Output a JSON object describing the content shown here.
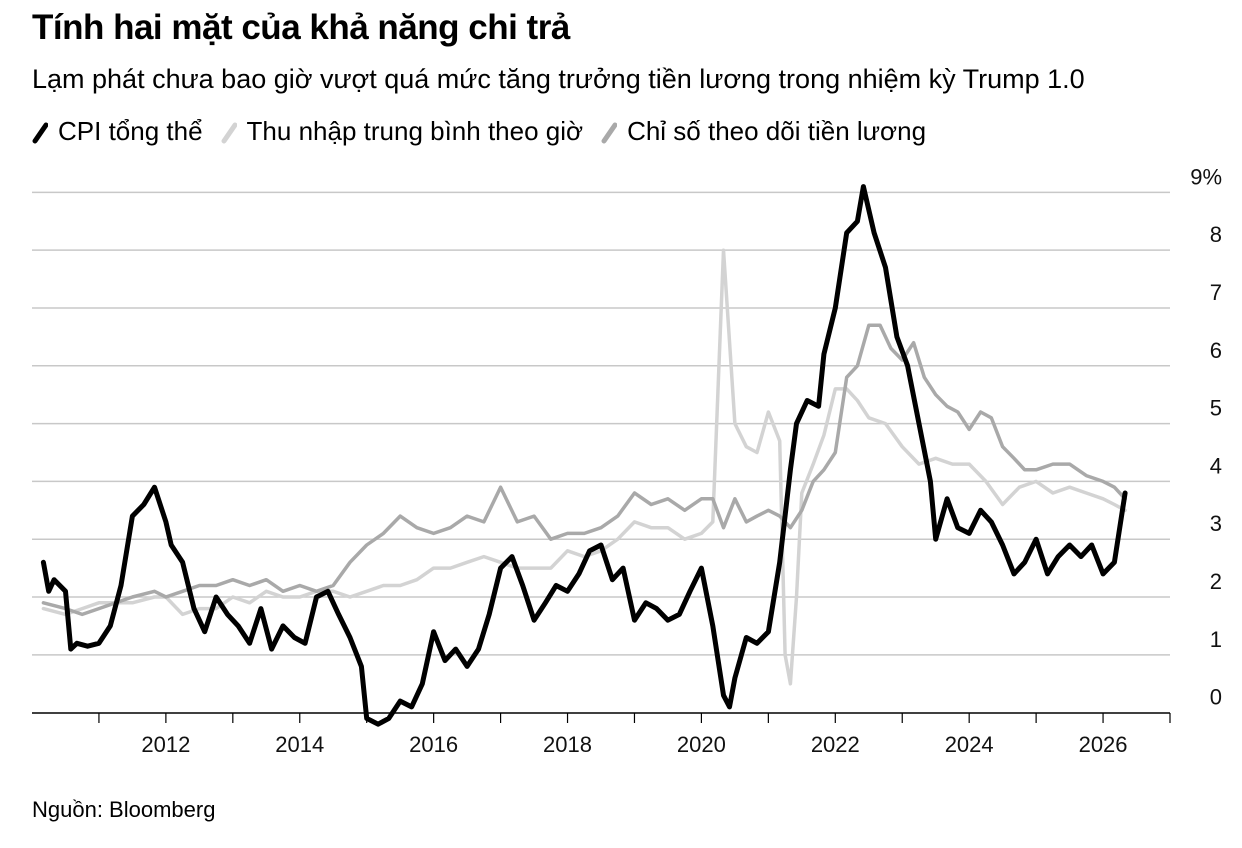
{
  "title": "Tính hai mặt của khả năng chi trả",
  "subtitle": "Lạm phát chưa bao giờ vượt quá mức tăng trưởng tiền lương trong nhiệm kỳ Trump 1.0",
  "source": "Nguồn: Bloomberg",
  "colors": {
    "cpi": "#000000",
    "ahe": "#d3d3d3",
    "wage": "#a9a9a9",
    "grid": "#c8c8c8"
  },
  "chart_data": {
    "type": "line",
    "xlim": [
      2010.0,
      2027.0
    ],
    "ylim": [
      -0.3,
      9.3
    ],
    "y_ticks": [
      0,
      1,
      2,
      3,
      4,
      5,
      6,
      7,
      8,
      9
    ],
    "y_tick_labels": [
      "0",
      "1",
      "2",
      "3",
      "4",
      "5",
      "6",
      "7",
      "8",
      "9%"
    ],
    "x_ticks": [
      2012,
      2014,
      2016,
      2018,
      2020,
      2022,
      2024,
      2026
    ],
    "x_tick_labels": [
      "2012",
      "2014",
      "2016",
      "2018",
      "2020",
      "2022",
      "2024",
      "2026"
    ],
    "grid": true,
    "legend_position": "top-left",
    "series": [
      {
        "name": "CPI tổng thể",
        "color": "#000000",
        "points": [
          [
            2010.17,
            2.6
          ],
          [
            2010.25,
            2.1
          ],
          [
            2010.33,
            2.3
          ],
          [
            2010.5,
            2.1
          ],
          [
            2010.58,
            1.1
          ],
          [
            2010.67,
            1.2
          ],
          [
            2010.83,
            1.15
          ],
          [
            2011.0,
            1.2
          ],
          [
            2011.17,
            1.5
          ],
          [
            2011.33,
            2.2
          ],
          [
            2011.5,
            3.4
          ],
          [
            2011.67,
            3.6
          ],
          [
            2011.83,
            3.9
          ],
          [
            2012.0,
            3.3
          ],
          [
            2012.08,
            2.9
          ],
          [
            2012.25,
            2.6
          ],
          [
            2012.42,
            1.8
          ],
          [
            2012.58,
            1.4
          ],
          [
            2012.75,
            2.0
          ],
          [
            2012.92,
            1.7
          ],
          [
            2013.08,
            1.5
          ],
          [
            2013.25,
            1.2
          ],
          [
            2013.42,
            1.8
          ],
          [
            2013.58,
            1.1
          ],
          [
            2013.75,
            1.5
          ],
          [
            2013.92,
            1.3
          ],
          [
            2014.08,
            1.2
          ],
          [
            2014.25,
            2.0
          ],
          [
            2014.42,
            2.1
          ],
          [
            2014.58,
            1.7
          ],
          [
            2014.75,
            1.3
          ],
          [
            2014.92,
            0.8
          ],
          [
            2015.0,
            -0.1
          ],
          [
            2015.17,
            -0.2
          ],
          [
            2015.33,
            -0.1
          ],
          [
            2015.5,
            0.2
          ],
          [
            2015.67,
            0.1
          ],
          [
            2015.83,
            0.5
          ],
          [
            2016.0,
            1.4
          ],
          [
            2016.17,
            0.9
          ],
          [
            2016.33,
            1.1
          ],
          [
            2016.5,
            0.8
          ],
          [
            2016.67,
            1.1
          ],
          [
            2016.83,
            1.7
          ],
          [
            2017.0,
            2.5
          ],
          [
            2017.17,
            2.7
          ],
          [
            2017.33,
            2.2
          ],
          [
            2017.5,
            1.6
          ],
          [
            2017.67,
            1.9
          ],
          [
            2017.83,
            2.2
          ],
          [
            2018.0,
            2.1
          ],
          [
            2018.17,
            2.4
          ],
          [
            2018.33,
            2.8
          ],
          [
            2018.5,
            2.9
          ],
          [
            2018.67,
            2.3
          ],
          [
            2018.83,
            2.5
          ],
          [
            2019.0,
            1.6
          ],
          [
            2019.17,
            1.9
          ],
          [
            2019.33,
            1.8
          ],
          [
            2019.5,
            1.6
          ],
          [
            2019.67,
            1.7
          ],
          [
            2019.83,
            2.1
          ],
          [
            2020.0,
            2.5
          ],
          [
            2020.17,
            1.5
          ],
          [
            2020.33,
            0.3
          ],
          [
            2020.42,
            0.1
          ],
          [
            2020.5,
            0.6
          ],
          [
            2020.67,
            1.3
          ],
          [
            2020.83,
            1.2
          ],
          [
            2021.0,
            1.4
          ],
          [
            2021.17,
            2.6
          ],
          [
            2021.33,
            4.2
          ],
          [
            2021.42,
            5.0
          ],
          [
            2021.58,
            5.4
          ],
          [
            2021.75,
            5.3
          ],
          [
            2021.83,
            6.2
          ],
          [
            2022.0,
            7.0
          ],
          [
            2022.17,
            8.3
          ],
          [
            2022.33,
            8.5
          ],
          [
            2022.42,
            9.1
          ],
          [
            2022.58,
            8.3
          ],
          [
            2022.75,
            7.7
          ],
          [
            2022.92,
            6.5
          ],
          [
            2023.08,
            6.0
          ],
          [
            2023.25,
            5.0
          ],
          [
            2023.42,
            4.0
          ],
          [
            2023.5,
            3.0
          ],
          [
            2023.67,
            3.7
          ],
          [
            2023.83,
            3.2
          ],
          [
            2024.0,
            3.1
          ],
          [
            2024.17,
            3.5
          ],
          [
            2024.33,
            3.3
          ],
          [
            2024.5,
            2.9
          ],
          [
            2024.67,
            2.4
          ],
          [
            2024.83,
            2.6
          ],
          [
            2025.0,
            3.0
          ],
          [
            2025.17,
            2.4
          ],
          [
            2025.33,
            2.7
          ],
          [
            2025.5,
            2.9
          ],
          [
            2025.67,
            2.7
          ],
          [
            2025.83,
            2.9
          ],
          [
            2026.0,
            2.4
          ],
          [
            2026.17,
            2.6
          ],
          [
            2026.33,
            3.8
          ]
        ]
      },
      {
        "name": "Thu nhập trung bình theo giờ",
        "color": "#d3d3d3",
        "points": [
          [
            2010.17,
            1.8
          ],
          [
            2010.5,
            1.7
          ],
          [
            2010.75,
            1.8
          ],
          [
            2011.0,
            1.9
          ],
          [
            2011.5,
            1.9
          ],
          [
            2011.83,
            2.0
          ],
          [
            2012.0,
            2.0
          ],
          [
            2012.25,
            1.7
          ],
          [
            2012.5,
            1.8
          ],
          [
            2012.75,
            1.8
          ],
          [
            2013.0,
            2.0
          ],
          [
            2013.25,
            1.9
          ],
          [
            2013.5,
            2.1
          ],
          [
            2013.75,
            2.0
          ],
          [
            2014.0,
            2.0
          ],
          [
            2014.25,
            2.1
          ],
          [
            2014.5,
            2.1
          ],
          [
            2014.75,
            2.0
          ],
          [
            2015.0,
            2.1
          ],
          [
            2015.25,
            2.2
          ],
          [
            2015.5,
            2.2
          ],
          [
            2015.75,
            2.3
          ],
          [
            2016.0,
            2.5
          ],
          [
            2016.25,
            2.5
          ],
          [
            2016.5,
            2.6
          ],
          [
            2016.75,
            2.7
          ],
          [
            2017.0,
            2.6
          ],
          [
            2017.25,
            2.5
          ],
          [
            2017.5,
            2.5
          ],
          [
            2017.75,
            2.5
          ],
          [
            2018.0,
            2.8
          ],
          [
            2018.25,
            2.7
          ],
          [
            2018.5,
            2.8
          ],
          [
            2018.75,
            3.0
          ],
          [
            2019.0,
            3.3
          ],
          [
            2019.25,
            3.2
          ],
          [
            2019.5,
            3.2
          ],
          [
            2019.75,
            3.0
          ],
          [
            2020.0,
            3.1
          ],
          [
            2020.17,
            3.3
          ],
          [
            2020.33,
            8.0
          ],
          [
            2020.5,
            5.0
          ],
          [
            2020.67,
            4.6
          ],
          [
            2020.83,
            4.5
          ],
          [
            2021.0,
            5.2
          ],
          [
            2021.17,
            4.7
          ],
          [
            2021.25,
            1.0
          ],
          [
            2021.33,
            0.5
          ],
          [
            2021.42,
            2.0
          ],
          [
            2021.5,
            3.8
          ],
          [
            2021.67,
            4.3
          ],
          [
            2021.83,
            4.8
          ],
          [
            2022.0,
            5.6
          ],
          [
            2022.17,
            5.6
          ],
          [
            2022.33,
            5.4
          ],
          [
            2022.5,
            5.1
          ],
          [
            2022.75,
            5.0
          ],
          [
            2023.0,
            4.6
          ],
          [
            2023.25,
            4.3
          ],
          [
            2023.5,
            4.4
          ],
          [
            2023.75,
            4.3
          ],
          [
            2024.0,
            4.3
          ],
          [
            2024.25,
            4.0
          ],
          [
            2024.5,
            3.6
          ],
          [
            2024.75,
            3.9
          ],
          [
            2025.0,
            4.0
          ],
          [
            2025.25,
            3.8
          ],
          [
            2025.5,
            3.9
          ],
          [
            2025.75,
            3.8
          ],
          [
            2026.0,
            3.7
          ],
          [
            2026.17,
            3.6
          ],
          [
            2026.33,
            3.5
          ]
        ]
      },
      {
        "name": "Chỉ số theo dõi tiền lương",
        "color": "#a9a9a9",
        "points": [
          [
            2010.17,
            1.9
          ],
          [
            2010.5,
            1.8
          ],
          [
            2010.75,
            1.7
          ],
          [
            2011.0,
            1.8
          ],
          [
            2011.5,
            2.0
          ],
          [
            2011.83,
            2.1
          ],
          [
            2012.0,
            2.0
          ],
          [
            2012.25,
            2.1
          ],
          [
            2012.5,
            2.2
          ],
          [
            2012.75,
            2.2
          ],
          [
            2013.0,
            2.3
          ],
          [
            2013.25,
            2.2
          ],
          [
            2013.5,
            2.3
          ],
          [
            2013.75,
            2.1
          ],
          [
            2014.0,
            2.2
          ],
          [
            2014.25,
            2.1
          ],
          [
            2014.5,
            2.2
          ],
          [
            2014.75,
            2.6
          ],
          [
            2015.0,
            2.9
          ],
          [
            2015.25,
            3.1
          ],
          [
            2015.5,
            3.4
          ],
          [
            2015.75,
            3.2
          ],
          [
            2016.0,
            3.1
          ],
          [
            2016.25,
            3.2
          ],
          [
            2016.5,
            3.4
          ],
          [
            2016.75,
            3.3
          ],
          [
            2017.0,
            3.9
          ],
          [
            2017.25,
            3.3
          ],
          [
            2017.5,
            3.4
          ],
          [
            2017.75,
            3.0
          ],
          [
            2018.0,
            3.1
          ],
          [
            2018.25,
            3.1
          ],
          [
            2018.5,
            3.2
          ],
          [
            2018.75,
            3.4
          ],
          [
            2019.0,
            3.8
          ],
          [
            2019.25,
            3.6
          ],
          [
            2019.5,
            3.7
          ],
          [
            2019.75,
            3.5
          ],
          [
            2020.0,
            3.7
          ],
          [
            2020.17,
            3.7
          ],
          [
            2020.33,
            3.2
          ],
          [
            2020.5,
            3.7
          ],
          [
            2020.67,
            3.3
          ],
          [
            2020.83,
            3.4
          ],
          [
            2021.0,
            3.5
          ],
          [
            2021.17,
            3.4
          ],
          [
            2021.33,
            3.2
          ],
          [
            2021.5,
            3.5
          ],
          [
            2021.67,
            4.0
          ],
          [
            2021.83,
            4.2
          ],
          [
            2022.0,
            4.5
          ],
          [
            2022.17,
            5.8
          ],
          [
            2022.33,
            6.0
          ],
          [
            2022.5,
            6.7
          ],
          [
            2022.67,
            6.7
          ],
          [
            2022.83,
            6.3
          ],
          [
            2023.0,
            6.1
          ],
          [
            2023.17,
            6.4
          ],
          [
            2023.33,
            5.8
          ],
          [
            2023.5,
            5.5
          ],
          [
            2023.67,
            5.3
          ],
          [
            2023.83,
            5.2
          ],
          [
            2024.0,
            4.9
          ],
          [
            2024.17,
            5.2
          ],
          [
            2024.33,
            5.1
          ],
          [
            2024.5,
            4.6
          ],
          [
            2024.67,
            4.4
          ],
          [
            2024.83,
            4.2
          ],
          [
            2025.0,
            4.2
          ],
          [
            2025.25,
            4.3
          ],
          [
            2025.5,
            4.3
          ],
          [
            2025.75,
            4.1
          ],
          [
            2026.0,
            4.0
          ],
          [
            2026.17,
            3.9
          ],
          [
            2026.33,
            3.7
          ]
        ]
      }
    ]
  }
}
